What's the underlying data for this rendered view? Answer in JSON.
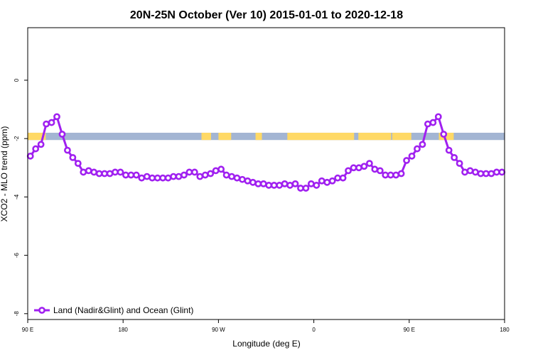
{
  "chart_data": {
    "type": "line",
    "title": "20N-25N October (Ver 10)   2015-01-01 to 2020-12-18",
    "xlabel": "Longitude (deg E)",
    "ylabel": "XCO2 - MLO trend (ppm)",
    "xlim": [
      90,
      540
    ],
    "ylim": [
      -8.2,
      1.8
    ],
    "x_ticks": [
      {
        "value": 90,
        "label": "90 E"
      },
      {
        "value": 180,
        "label": "180"
      },
      {
        "value": 270,
        "label": "90 W"
      },
      {
        "value": 360,
        "label": "0"
      },
      {
        "value": 450,
        "label": "90 E"
      },
      {
        "value": 540,
        "label": "180"
      }
    ],
    "y_ticks": [
      {
        "value": 0,
        "label": "0"
      },
      {
        "value": -2,
        "label": "-2"
      },
      {
        "value": -4,
        "label": "-4"
      },
      {
        "value": -6,
        "label": "-6"
      },
      {
        "value": -8,
        "label": "-8"
      }
    ],
    "band": {
      "y_min": -2.05,
      "y_max": -1.8,
      "ocean_color": "#a3b5d3",
      "land_color": "#ffd966"
    },
    "land_segments": [
      [
        90,
        107
      ],
      [
        254,
        263
      ],
      [
        270,
        282
      ],
      [
        305,
        311
      ],
      [
        335,
        398
      ],
      [
        402,
        433
      ],
      [
        434,
        452
      ],
      [
        478,
        492
      ]
    ],
    "series": [
      {
        "name": "Land (Nadir&Glint) and Ocean (Glint)",
        "color": "#a020f0",
        "x": [
          92.5,
          97.5,
          102.5,
          107.5,
          112.5,
          117.5,
          122.5,
          127.5,
          132.5,
          137.5,
          142.5,
          147.5,
          152.5,
          157.5,
          162.5,
          167.5,
          172.5,
          177.5,
          182.5,
          187.5,
          192.5,
          197.5,
          202.5,
          207.5,
          212.5,
          217.5,
          222.5,
          227.5,
          232.5,
          237.5,
          242.5,
          247.5,
          252.5,
          257.5,
          262.5,
          267.5,
          272.5,
          277.5,
          282.5,
          287.5,
          292.5,
          297.5,
          302.5,
          307.5,
          312.5,
          317.5,
          322.5,
          327.5,
          332.5,
          337.5,
          342.5,
          347.5,
          352.5,
          357.5,
          362.5,
          367.5,
          372.5,
          377.5,
          382.5,
          387.5,
          392.5,
          397.5,
          402.5,
          407.5,
          412.5,
          417.5,
          422.5,
          427.5,
          432.5,
          437.5,
          442.5,
          447.5,
          452.5,
          457.5,
          462.5,
          467.5,
          472.5,
          477.5,
          482.5,
          487.5,
          492.5,
          497.5,
          502.5,
          507.5,
          512.5,
          517.5,
          522.5,
          527.5,
          532.5,
          537.5
        ],
        "values": [
          -2.6,
          -2.35,
          -2.2,
          -1.5,
          -1.45,
          -1.25,
          -1.85,
          -2.4,
          -2.65,
          -2.85,
          -3.15,
          -3.1,
          -3.15,
          -3.2,
          -3.2,
          -3.2,
          -3.15,
          -3.15,
          -3.25,
          -3.25,
          -3.25,
          -3.35,
          -3.3,
          -3.35,
          -3.35,
          -3.35,
          -3.35,
          -3.3,
          -3.3,
          -3.25,
          -3.15,
          -3.15,
          -3.3,
          -3.25,
          -3.2,
          -3.1,
          -3.05,
          -3.25,
          -3.3,
          -3.35,
          -3.4,
          -3.45,
          -3.5,
          -3.55,
          -3.55,
          -3.6,
          -3.6,
          -3.6,
          -3.55,
          -3.6,
          -3.55,
          -3.7,
          -3.7,
          -3.55,
          -3.6,
          -3.45,
          -3.5,
          -3.45,
          -3.35,
          -3.35,
          -3.1,
          -3.0,
          -3.0,
          -2.95,
          -2.85,
          -3.05,
          -3.1,
          -3.25,
          -3.25,
          -3.25,
          -3.2,
          -2.75,
          -2.6,
          -2.35,
          -2.2,
          -1.5,
          -1.45,
          -1.25,
          -1.85,
          -2.4,
          -2.65,
          -2.85,
          -3.15,
          -3.1,
          -3.15,
          -3.2,
          -3.2,
          -3.2,
          -3.15,
          -3.15
        ]
      }
    ],
    "legend_position": "bottom-left",
    "grid": false
  }
}
